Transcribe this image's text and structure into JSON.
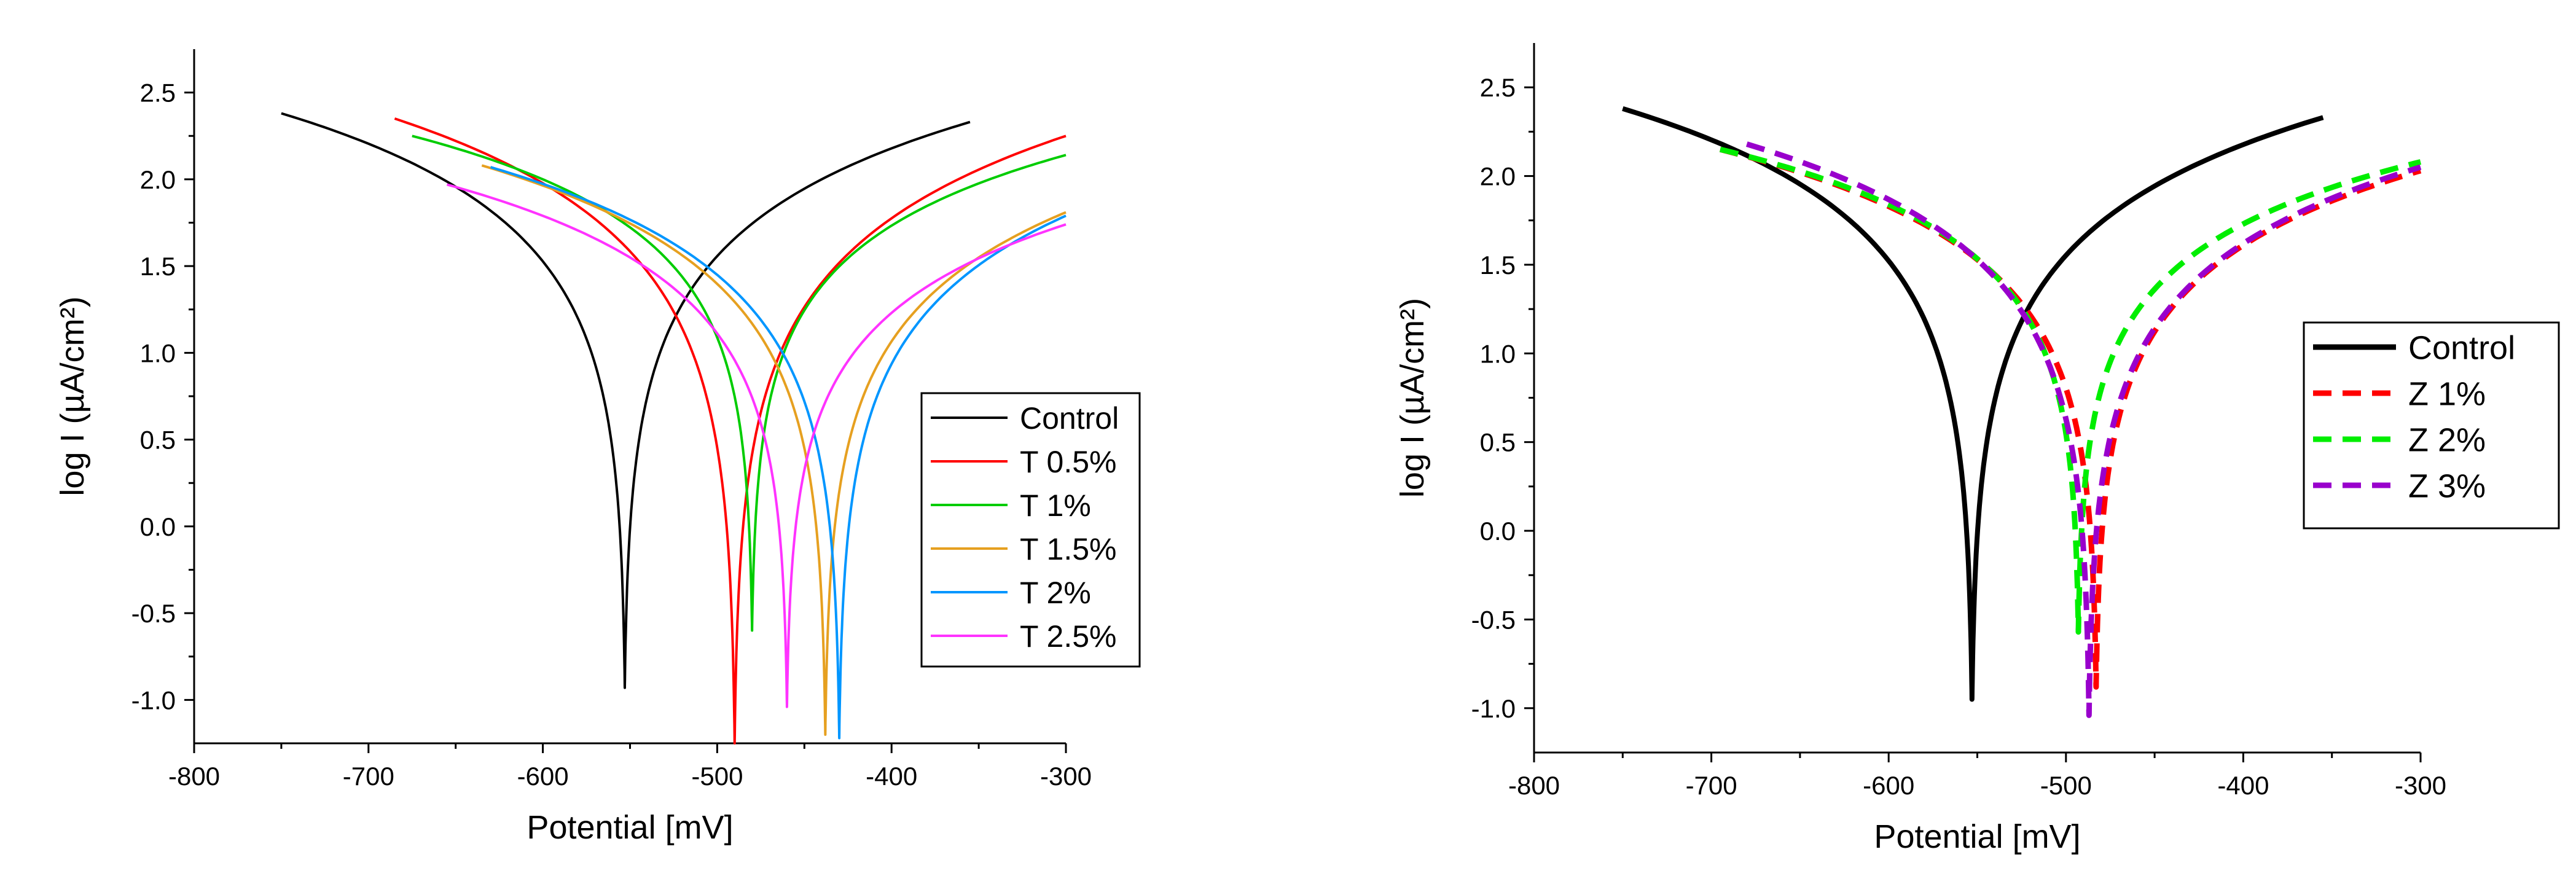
{
  "chart_data": [
    {
      "type": "line",
      "xlabel": "Potential [mV]",
      "ylabel": "log I (µA/cm²)",
      "xlim": [
        -800,
        -300
      ],
      "ylim": [
        -1.25,
        2.75
      ],
      "xticks": [
        "-800",
        "-700",
        "-600",
        "-500",
        "-400",
        "-300"
      ],
      "yticks": [
        "2.5",
        "2.0",
        "1.5",
        "1.0",
        "0.5",
        "0.0",
        "-0.5",
        "-1.0"
      ],
      "legend_position": "lower-right",
      "series": [
        {
          "name": "Control",
          "color": "#000000",
          "dash": "solid",
          "ecorr": -553,
          "ymin": -0.93,
          "start": [
            -750,
            2.38
          ],
          "end": [
            -355,
            2.33
          ]
        },
        {
          "name": "T 0.5%",
          "color": "#ff0000",
          "dash": "solid",
          "ecorr": -490,
          "ymin": -1.25,
          "start": [
            -685,
            2.35
          ],
          "end": [
            -300,
            2.25
          ]
        },
        {
          "name": "T 1%",
          "color": "#00cc00",
          "dash": "solid",
          "ecorr": -480,
          "ymin": -0.6,
          "start": [
            -675,
            2.25
          ],
          "end": [
            -300,
            2.14
          ]
        },
        {
          "name": "T 1.5%",
          "color": "#e6a020",
          "dash": "solid",
          "ecorr": -438,
          "ymin": -1.2,
          "start": [
            -635,
            2.08
          ],
          "end": [
            -300,
            1.81
          ]
        },
        {
          "name": "T 2%",
          "color": "#0096ff",
          "dash": "solid",
          "ecorr": -430,
          "ymin": -1.22,
          "start": [
            -630,
            2.07
          ],
          "end": [
            -300,
            1.79
          ]
        },
        {
          "name": "T 2.5%",
          "color": "#ff33ff",
          "dash": "solid",
          "ecorr": -460,
          "ymin": -1.04,
          "start": [
            -655,
            1.97
          ],
          "end": [
            -300,
            1.74
          ]
        }
      ]
    },
    {
      "type": "line",
      "xlabel": "Potential [mV]",
      "ylabel": "log I (µA/cm²)",
      "xlim": [
        -800,
        -300
      ],
      "ylim": [
        -1.25,
        2.75
      ],
      "xticks": [
        "-800",
        "-700",
        "-600",
        "-500",
        "-400",
        "-300"
      ],
      "yticks": [
        "2.5",
        "2.0",
        "1.5",
        "1.0",
        "0.5",
        "0.0",
        "-0.5",
        "-1.0"
      ],
      "legend_position": "right",
      "series": [
        {
          "name": "Control",
          "color": "#000000",
          "dash": "solid",
          "ecorr": -553,
          "ymin": -0.95,
          "start": [
            -750,
            2.38
          ],
          "end": [
            -355,
            2.33
          ]
        },
        {
          "name": "Z 1%",
          "color": "#ff0000",
          "dash": "dashed",
          "ecorr": -483,
          "ymin": -0.88,
          "start": [
            -695,
            2.15
          ],
          "end": [
            -300,
            2.03
          ]
        },
        {
          "name": "Z 2%",
          "color": "#00ee00",
          "dash": "dashed",
          "ecorr": -493,
          "ymin": -0.57,
          "start": [
            -695,
            2.15
          ],
          "end": [
            -300,
            2.08
          ]
        },
        {
          "name": "Z 3%",
          "color": "#9900cc",
          "dash": "dashed",
          "ecorr": -487,
          "ymin": -1.04,
          "start": [
            -680,
            2.18
          ],
          "end": [
            -300,
            2.05
          ]
        }
      ]
    }
  ]
}
